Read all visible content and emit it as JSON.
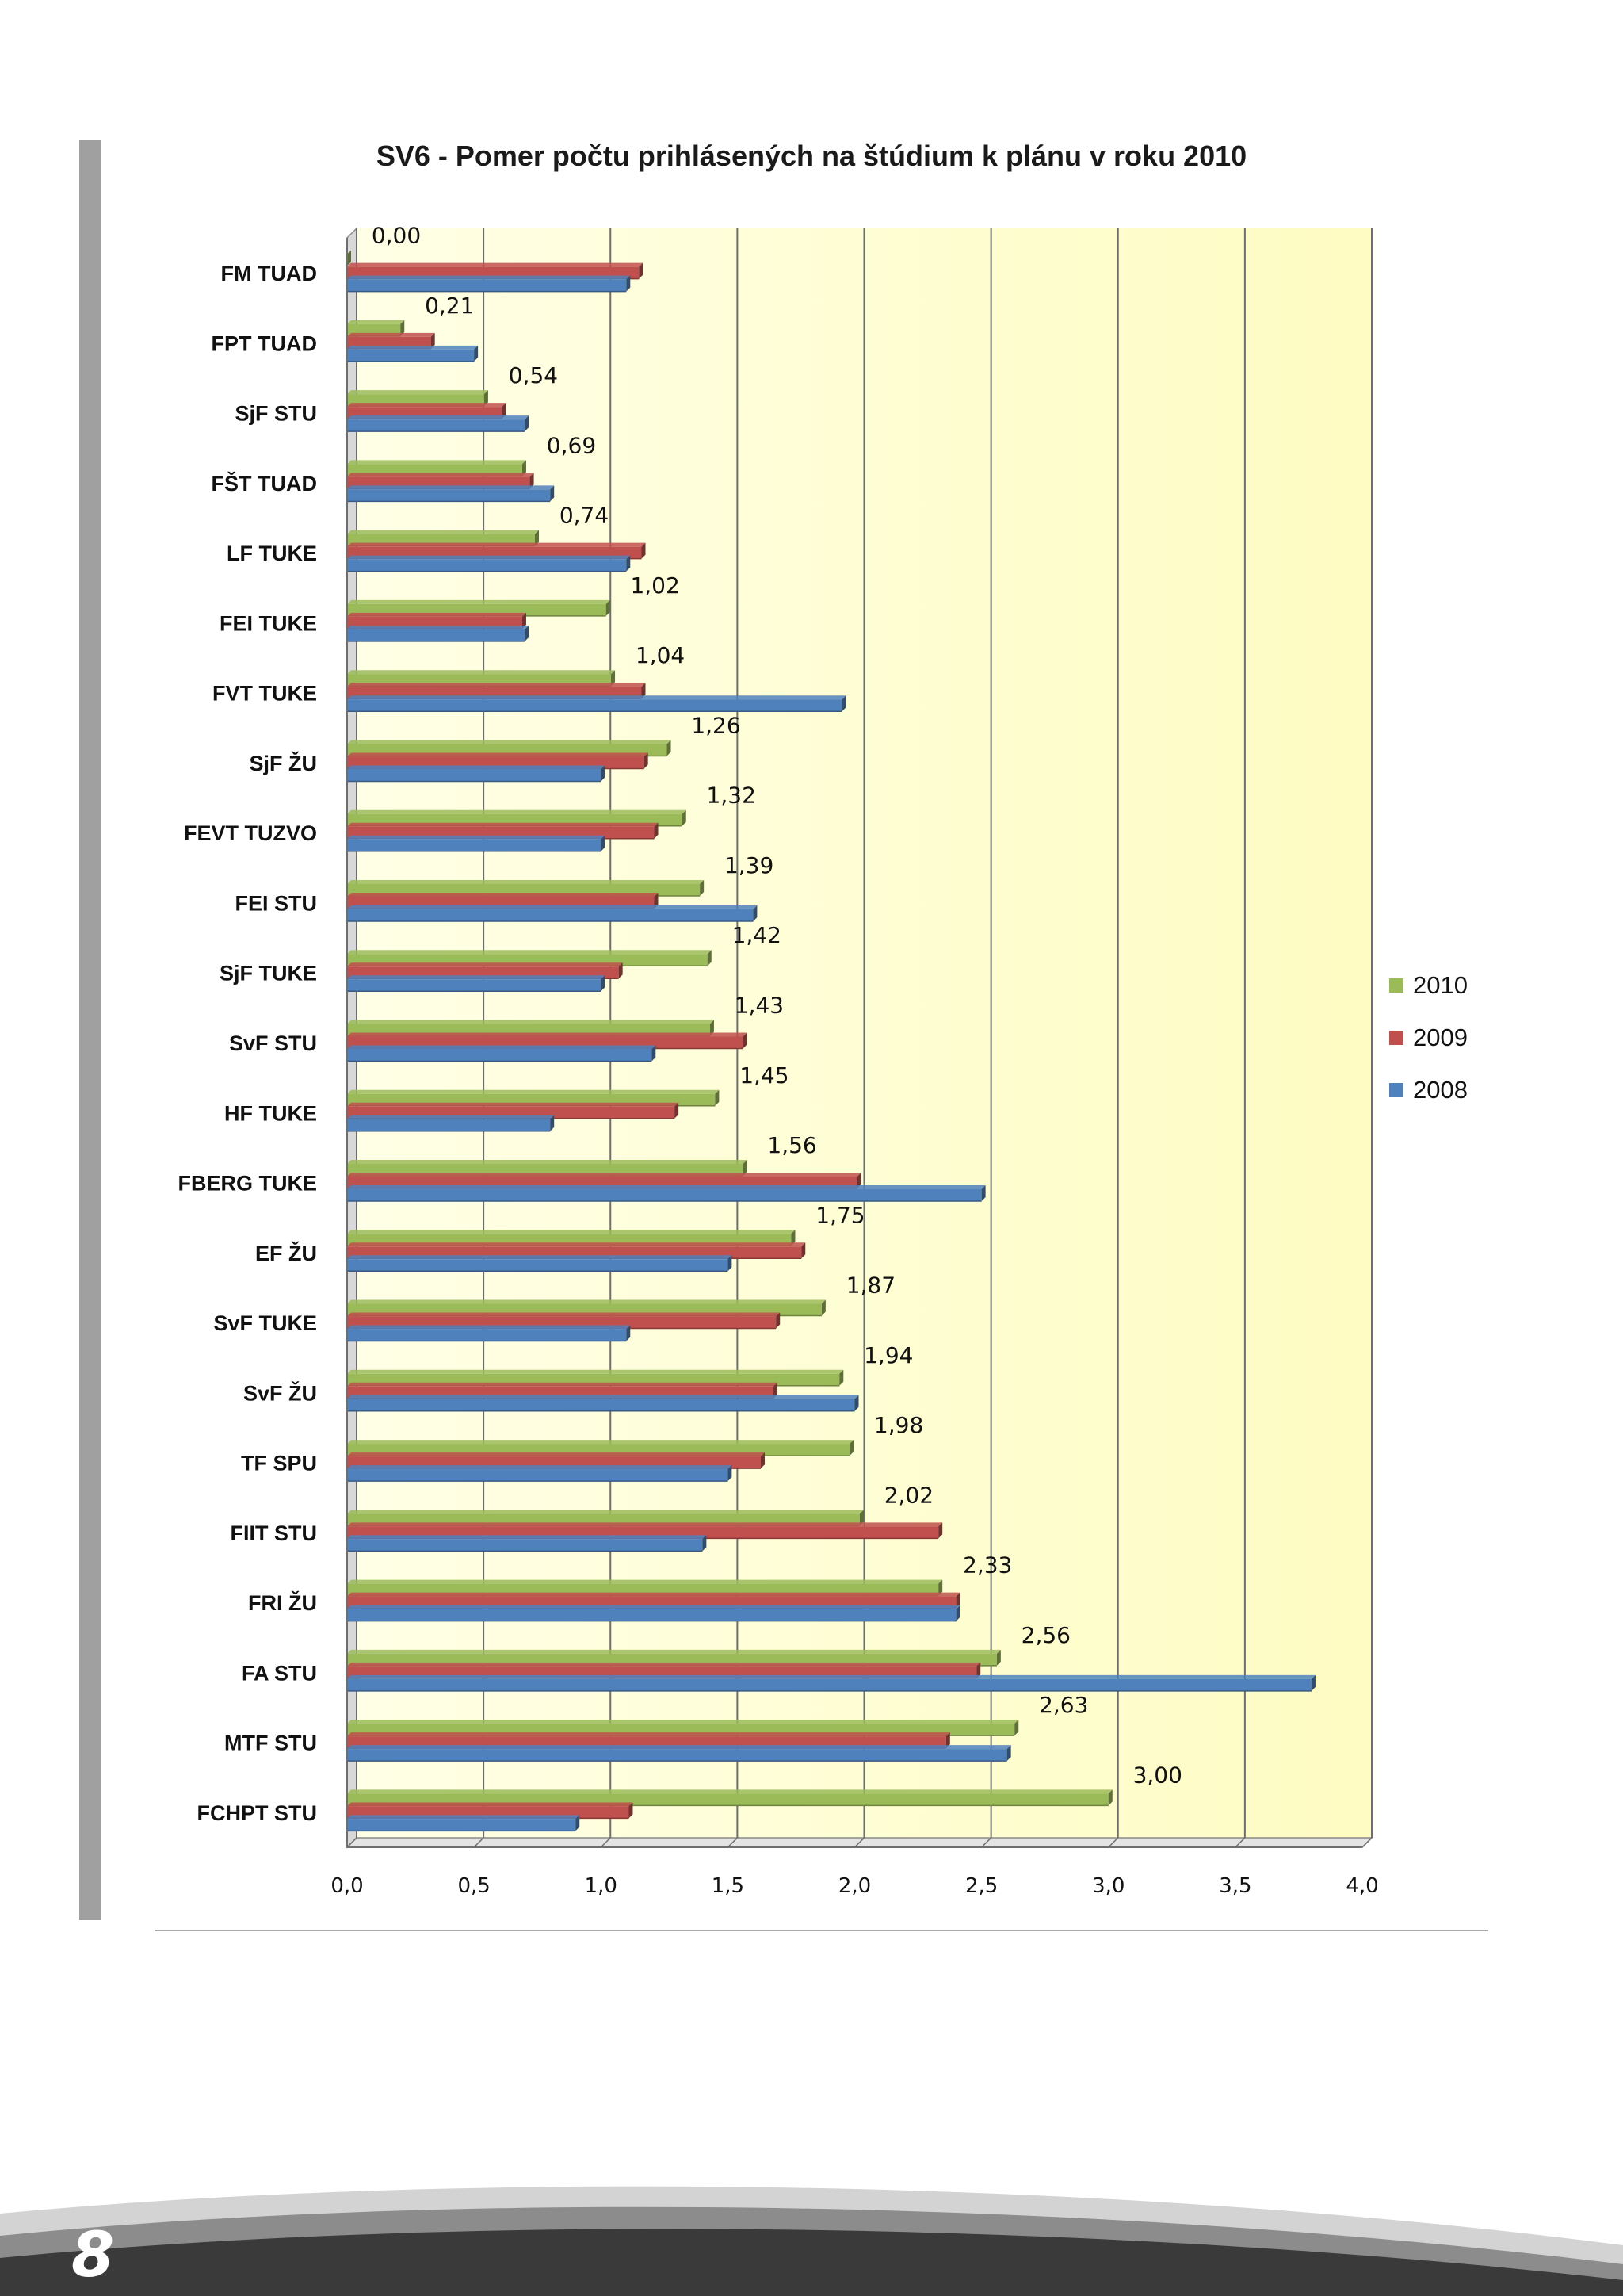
{
  "page": {
    "number": "8"
  },
  "chart_data": {
    "type": "bar",
    "orientation": "horizontal",
    "title": "SV6 - Pomer počtu prihlásených na štúdium k plánu v roku 2010",
    "xlabel": "",
    "ylabel": "",
    "xlim": [
      0,
      4
    ],
    "x_ticks": [
      "0,0",
      "0,5",
      "1,0",
      "1,5",
      "2,0",
      "2,5",
      "3,0",
      "3,5",
      "4,0"
    ],
    "grid": true,
    "legend_position": "right",
    "categories": [
      "FM TUAD",
      "FPT TUAD",
      "SjF STU",
      "FŠT TUAD",
      "LF TUKE",
      "FEI TUKE",
      "FVT TUKE",
      "SjF ŽU",
      "FEVT TUZVO",
      "FEI STU",
      "SjF TUKE",
      "SvF STU",
      "HF TUKE",
      "FBERG  TUKE",
      "EF ŽU",
      "SvF TUKE",
      "SvF ŽU",
      "TF SPU",
      "FIIT STU",
      "FRI ŽU",
      "FA STU",
      "MTF STU",
      "FCHPT STU"
    ],
    "series": [
      {
        "name": "2010",
        "color": "#9bbb59",
        "values": [
          0.0,
          0.21,
          0.54,
          0.69,
          0.74,
          1.02,
          1.04,
          1.26,
          1.32,
          1.39,
          1.42,
          1.43,
          1.45,
          1.56,
          1.75,
          1.87,
          1.94,
          1.98,
          2.02,
          2.33,
          2.56,
          2.63,
          3.0
        ]
      },
      {
        "name": "2009",
        "color": "#c0504d",
        "values": [
          1.15,
          0.33,
          0.61,
          0.72,
          1.16,
          0.69,
          1.16,
          1.17,
          1.21,
          1.21,
          1.07,
          1.56,
          1.29,
          2.01,
          1.79,
          1.69,
          1.68,
          1.63,
          2.33,
          2.4,
          2.48,
          2.36,
          1.11
        ]
      },
      {
        "name": "2008",
        "color": "#4f81bd",
        "values": [
          1.1,
          0.5,
          0.7,
          0.8,
          1.1,
          0.7,
          1.95,
          1.0,
          1.0,
          1.6,
          1.0,
          1.2,
          0.8,
          2.5,
          1.5,
          1.1,
          2.0,
          1.5,
          1.4,
          2.4,
          3.8,
          2.6,
          0.9
        ]
      }
    ],
    "data_labels_series": "2010",
    "data_labels": [
      "0,00",
      "0,21",
      "0,54",
      "0,69",
      "0,74",
      "1,02",
      "1,04",
      "1,26",
      "1,32",
      "1,39",
      "1,42",
      "1,43",
      "1,45",
      "1,56",
      "1,75",
      "1,87",
      "1,94",
      "1,98",
      "2,02",
      "2,33",
      "2,56",
      "2,63",
      "3,00"
    ]
  }
}
